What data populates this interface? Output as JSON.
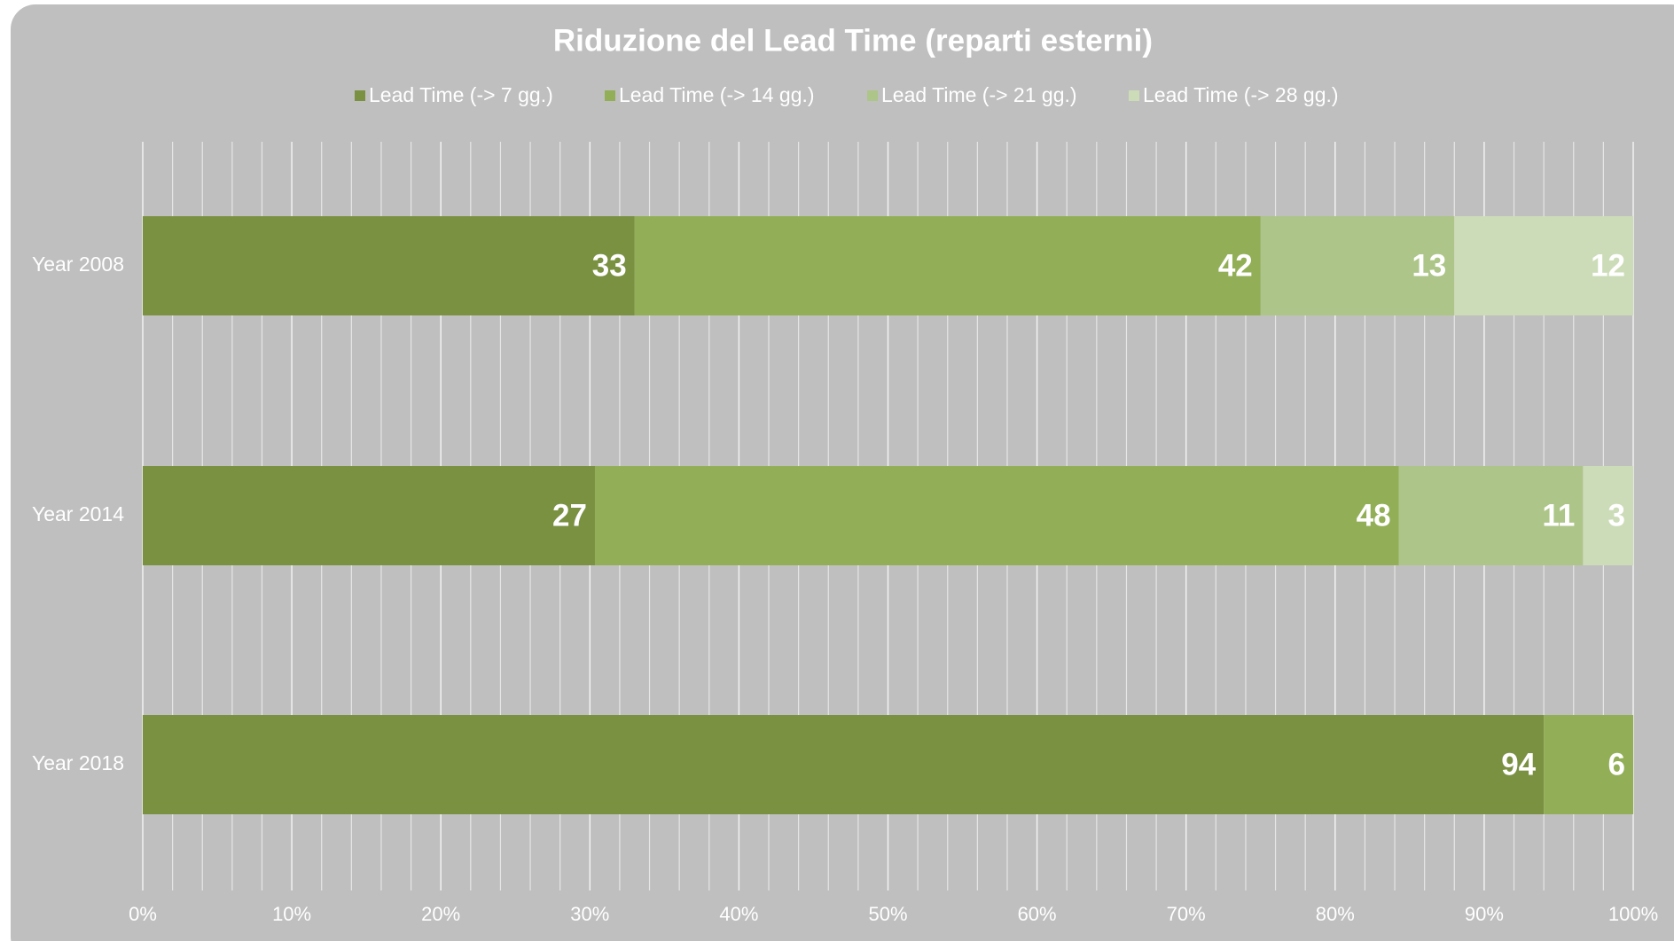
{
  "chart_data": {
    "type": "bar",
    "orientation": "horizontal",
    "stacking": "percent",
    "title": "Riduzione del Lead Time (reparti esterni)",
    "categories": [
      "Year 2008",
      "Year 2014",
      "Year 2018"
    ],
    "series": [
      {
        "name": "Lead Time (-> 7 gg.)",
        "color": "#7a9142",
        "values": [
          33,
          27,
          94
        ]
      },
      {
        "name": "Lead Time (-> 14 gg.)",
        "color": "#92af57",
        "values": [
          42,
          48,
          6
        ]
      },
      {
        "name": "Lead Time (-> 21 gg.)",
        "color": "#adc588",
        "values": [
          13,
          11,
          null
        ]
      },
      {
        "name": "Lead Time (-> 28 gg.)",
        "color": "#cddcb8",
        "values": [
          12,
          3,
          null
        ]
      }
    ],
    "xlim": [
      0,
      100
    ],
    "xticks": [
      {
        "value": 0,
        "label": "0%"
      },
      {
        "value": 10,
        "label": "10%"
      },
      {
        "value": 20,
        "label": "20%"
      },
      {
        "value": 30,
        "label": "30%"
      },
      {
        "value": 40,
        "label": "40%"
      },
      {
        "value": 50,
        "label": "50%"
      },
      {
        "value": 60,
        "label": "60%"
      },
      {
        "value": 70,
        "label": "70%"
      },
      {
        "value": 80,
        "label": "80%"
      },
      {
        "value": 90,
        "label": "90%"
      },
      {
        "value": 100,
        "label": "100%"
      }
    ],
    "grid": true,
    "legend": "top"
  }
}
